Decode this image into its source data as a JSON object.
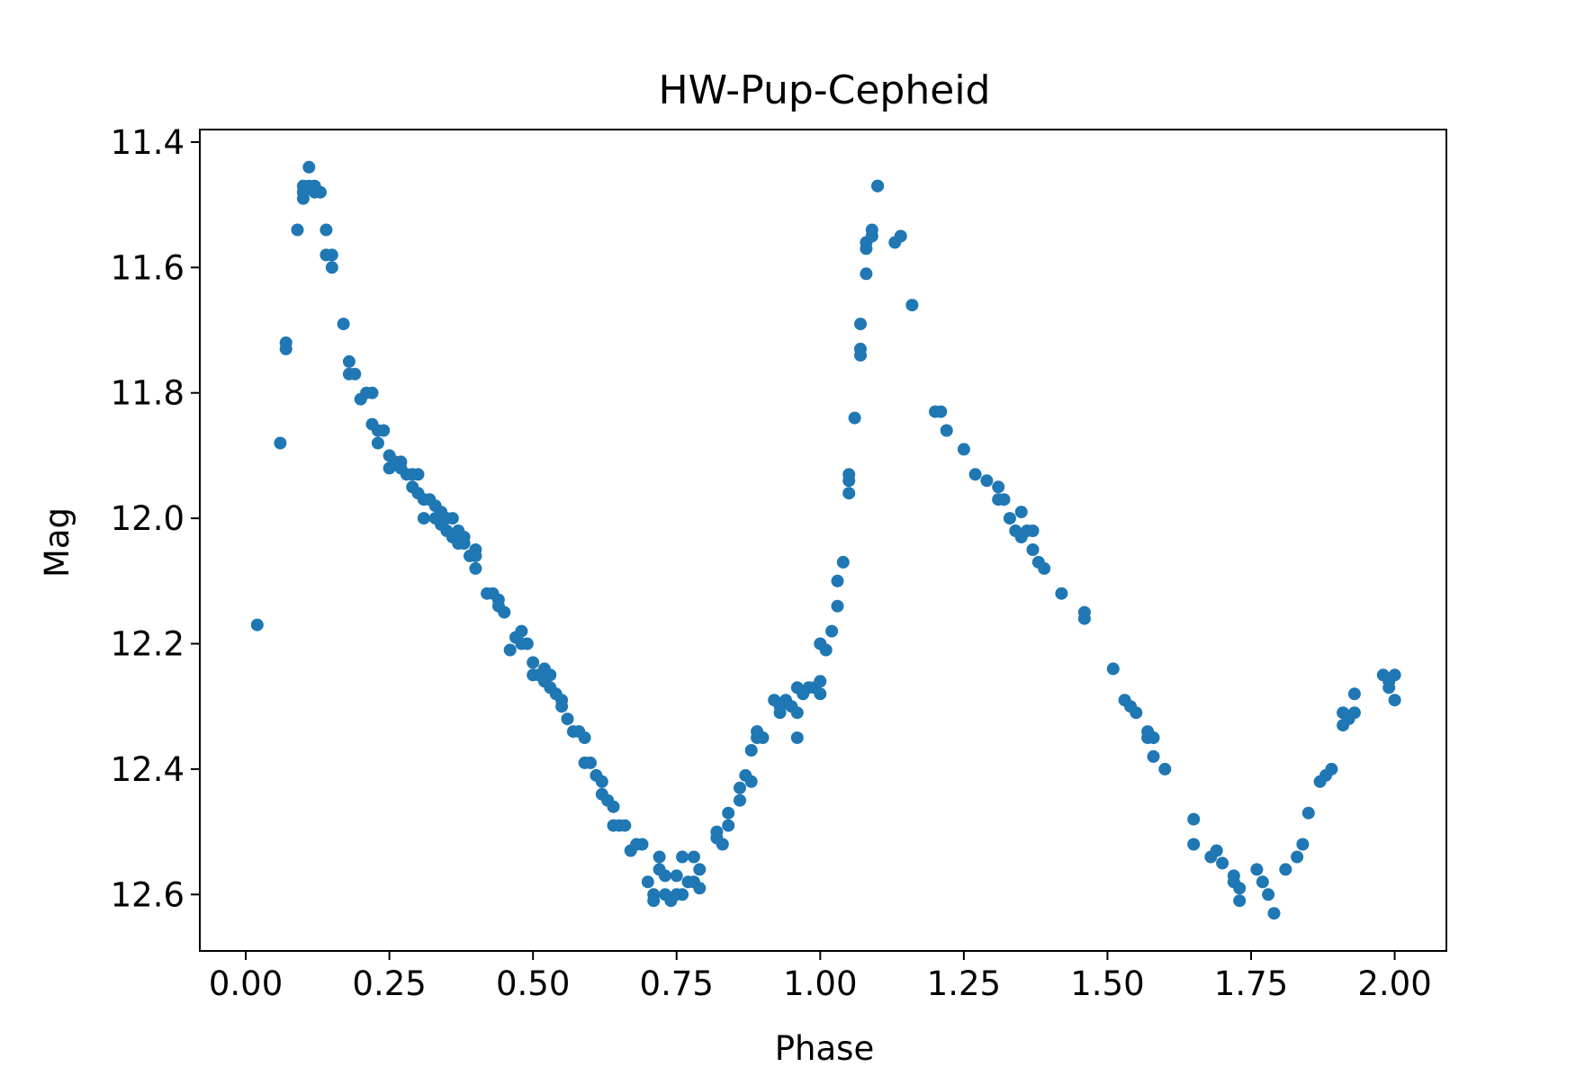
{
  "chart_data": {
    "type": "scatter",
    "title": "HW-Pup-Cepheid",
    "xlabel": "Phase",
    "ylabel": "Mag",
    "xlim": [
      -0.08,
      2.09
    ],
    "ylim": [
      12.69,
      11.38
    ],
    "y_inverted": true,
    "grid": false,
    "legend": "none",
    "marker_color": "#1f77b4",
    "xticks": [
      "0.00",
      "0.25",
      "0.50",
      "0.75",
      "1.00",
      "1.25",
      "1.50",
      "1.75",
      "2.00"
    ],
    "yticks": [
      "11.4",
      "11.6",
      "11.8",
      "12.0",
      "12.2",
      "12.4",
      "12.6"
    ],
    "points": [
      [
        0.02,
        12.17
      ],
      [
        0.06,
        11.88
      ],
      [
        0.07,
        11.72
      ],
      [
        0.07,
        11.73
      ],
      [
        0.09,
        11.54
      ],
      [
        0.1,
        11.47
      ],
      [
        0.1,
        11.49
      ],
      [
        0.1,
        11.48
      ],
      [
        0.11,
        11.44
      ],
      [
        0.11,
        11.47
      ],
      [
        0.12,
        11.47
      ],
      [
        0.12,
        11.48
      ],
      [
        0.13,
        11.48
      ],
      [
        0.14,
        11.58
      ],
      [
        0.14,
        11.54
      ],
      [
        0.15,
        11.58
      ],
      [
        0.15,
        11.6
      ],
      [
        0.17,
        11.69
      ],
      [
        0.18,
        11.75
      ],
      [
        0.18,
        11.77
      ],
      [
        0.19,
        11.77
      ],
      [
        0.2,
        11.81
      ],
      [
        0.21,
        11.8
      ],
      [
        0.22,
        11.8
      ],
      [
        0.22,
        11.85
      ],
      [
        0.23,
        11.86
      ],
      [
        0.23,
        11.88
      ],
      [
        0.24,
        11.86
      ],
      [
        0.25,
        11.92
      ],
      [
        0.25,
        11.9
      ],
      [
        0.26,
        11.91
      ],
      [
        0.27,
        11.91
      ],
      [
        0.27,
        11.92
      ],
      [
        0.28,
        11.93
      ],
      [
        0.29,
        11.93
      ],
      [
        0.29,
        11.95
      ],
      [
        0.3,
        11.93
      ],
      [
        0.3,
        11.96
      ],
      [
        0.31,
        12.0
      ],
      [
        0.31,
        11.97
      ],
      [
        0.32,
        11.97
      ],
      [
        0.33,
        11.98
      ],
      [
        0.33,
        12.0
      ],
      [
        0.34,
        11.99
      ],
      [
        0.34,
        12.01
      ],
      [
        0.35,
        12.0
      ],
      [
        0.35,
        12.02
      ],
      [
        0.36,
        12.0
      ],
      [
        0.36,
        12.03
      ],
      [
        0.37,
        12.04
      ],
      [
        0.37,
        12.02
      ],
      [
        0.38,
        12.04
      ],
      [
        0.38,
        12.03
      ],
      [
        0.39,
        12.06
      ],
      [
        0.4,
        12.06
      ],
      [
        0.4,
        12.08
      ],
      [
        0.4,
        12.05
      ],
      [
        0.42,
        12.12
      ],
      [
        0.43,
        12.12
      ],
      [
        0.44,
        12.13
      ],
      [
        0.44,
        12.14
      ],
      [
        0.45,
        12.15
      ],
      [
        0.46,
        12.21
      ],
      [
        0.47,
        12.19
      ],
      [
        0.48,
        12.18
      ],
      [
        0.48,
        12.2
      ],
      [
        0.49,
        12.2
      ],
      [
        0.5,
        12.23
      ],
      [
        0.5,
        12.25
      ],
      [
        0.51,
        12.25
      ],
      [
        0.52,
        12.24
      ],
      [
        0.52,
        12.26
      ],
      [
        0.53,
        12.25
      ],
      [
        0.53,
        12.27
      ],
      [
        0.54,
        12.28
      ],
      [
        0.55,
        12.29
      ],
      [
        0.55,
        12.3
      ],
      [
        0.56,
        12.32
      ],
      [
        0.57,
        12.34
      ],
      [
        0.58,
        12.34
      ],
      [
        0.59,
        12.35
      ],
      [
        0.59,
        12.39
      ],
      [
        0.6,
        12.39
      ],
      [
        0.61,
        12.41
      ],
      [
        0.62,
        12.42
      ],
      [
        0.62,
        12.44
      ],
      [
        0.63,
        12.45
      ],
      [
        0.64,
        12.46
      ],
      [
        0.64,
        12.49
      ],
      [
        0.65,
        12.49
      ],
      [
        0.66,
        12.49
      ],
      [
        0.67,
        12.53
      ],
      [
        0.68,
        12.52
      ],
      [
        0.69,
        12.52
      ],
      [
        0.7,
        12.58
      ],
      [
        0.71,
        12.6
      ],
      [
        0.71,
        12.61
      ],
      [
        0.72,
        12.54
      ],
      [
        0.72,
        12.56
      ],
      [
        0.73,
        12.57
      ],
      [
        0.73,
        12.6
      ],
      [
        0.74,
        12.61
      ],
      [
        0.75,
        12.57
      ],
      [
        0.75,
        12.6
      ],
      [
        0.76,
        12.54
      ],
      [
        0.76,
        12.6
      ],
      [
        0.77,
        12.58
      ],
      [
        0.78,
        12.54
      ],
      [
        0.78,
        12.58
      ],
      [
        0.79,
        12.56
      ],
      [
        0.79,
        12.59
      ],
      [
        0.82,
        12.5
      ],
      [
        0.82,
        12.51
      ],
      [
        0.83,
        12.52
      ],
      [
        0.84,
        12.47
      ],
      [
        0.84,
        12.49
      ],
      [
        0.86,
        12.45
      ],
      [
        0.86,
        12.43
      ],
      [
        0.87,
        12.41
      ],
      [
        0.88,
        12.42
      ],
      [
        0.88,
        12.37
      ],
      [
        0.89,
        12.35
      ],
      [
        0.89,
        12.34
      ],
      [
        0.9,
        12.35
      ],
      [
        0.92,
        12.29
      ],
      [
        0.93,
        12.3
      ],
      [
        0.93,
        12.31
      ],
      [
        0.94,
        12.29
      ],
      [
        0.95,
        12.3
      ],
      [
        0.96,
        12.27
      ],
      [
        0.96,
        12.31
      ],
      [
        0.96,
        12.35
      ],
      [
        0.97,
        12.28
      ],
      [
        0.98,
        12.27
      ],
      [
        0.99,
        12.27
      ],
      [
        1.0,
        12.26
      ],
      [
        1.0,
        12.28
      ],
      [
        1.0,
        12.2
      ],
      [
        1.01,
        12.21
      ],
      [
        1.02,
        12.18
      ],
      [
        1.03,
        12.14
      ],
      [
        1.03,
        12.1
      ],
      [
        1.04,
        12.07
      ],
      [
        1.05,
        11.94
      ],
      [
        1.05,
        11.93
      ],
      [
        1.05,
        11.96
      ],
      [
        1.06,
        11.84
      ],
      [
        1.07,
        11.69
      ],
      [
        1.07,
        11.73
      ],
      [
        1.07,
        11.74
      ],
      [
        1.08,
        11.61
      ],
      [
        1.08,
        11.56
      ],
      [
        1.08,
        11.57
      ],
      [
        1.09,
        11.55
      ],
      [
        1.09,
        11.54
      ],
      [
        1.1,
        11.47
      ],
      [
        1.1,
        11.47
      ],
      [
        1.13,
        11.56
      ],
      [
        1.14,
        11.55
      ],
      [
        1.16,
        11.66
      ],
      [
        1.2,
        11.83
      ],
      [
        1.21,
        11.83
      ],
      [
        1.22,
        11.86
      ],
      [
        1.25,
        11.89
      ],
      [
        1.27,
        11.93
      ],
      [
        1.29,
        11.94
      ],
      [
        1.31,
        11.95
      ],
      [
        1.31,
        11.97
      ],
      [
        1.32,
        11.97
      ],
      [
        1.33,
        12.0
      ],
      [
        1.34,
        12.02
      ],
      [
        1.35,
        11.99
      ],
      [
        1.35,
        12.03
      ],
      [
        1.36,
        12.02
      ],
      [
        1.37,
        12.05
      ],
      [
        1.37,
        12.02
      ],
      [
        1.38,
        12.07
      ],
      [
        1.39,
        12.08
      ],
      [
        1.42,
        12.12
      ],
      [
        1.46,
        12.15
      ],
      [
        1.46,
        12.16
      ],
      [
        1.51,
        12.24
      ],
      [
        1.53,
        12.29
      ],
      [
        1.54,
        12.3
      ],
      [
        1.55,
        12.31
      ],
      [
        1.57,
        12.34
      ],
      [
        1.57,
        12.35
      ],
      [
        1.58,
        12.35
      ],
      [
        1.58,
        12.38
      ],
      [
        1.6,
        12.4
      ],
      [
        1.65,
        12.48
      ],
      [
        1.65,
        12.52
      ],
      [
        1.68,
        12.54
      ],
      [
        1.69,
        12.53
      ],
      [
        1.7,
        12.55
      ],
      [
        1.72,
        12.57
      ],
      [
        1.72,
        12.58
      ],
      [
        1.73,
        12.59
      ],
      [
        1.73,
        12.61
      ],
      [
        1.76,
        12.56
      ],
      [
        1.77,
        12.58
      ],
      [
        1.78,
        12.6
      ],
      [
        1.79,
        12.63
      ],
      [
        1.81,
        12.56
      ],
      [
        1.83,
        12.54
      ],
      [
        1.84,
        12.52
      ],
      [
        1.85,
        12.47
      ],
      [
        1.87,
        12.42
      ],
      [
        1.88,
        12.41
      ],
      [
        1.89,
        12.4
      ],
      [
        1.91,
        12.33
      ],
      [
        1.91,
        12.31
      ],
      [
        1.92,
        12.32
      ],
      [
        1.93,
        12.31
      ],
      [
        1.93,
        12.28
      ],
      [
        1.98,
        12.25
      ],
      [
        1.99,
        12.26
      ],
      [
        1.99,
        12.27
      ],
      [
        2.0,
        12.29
      ],
      [
        2.0,
        12.25
      ]
    ]
  }
}
